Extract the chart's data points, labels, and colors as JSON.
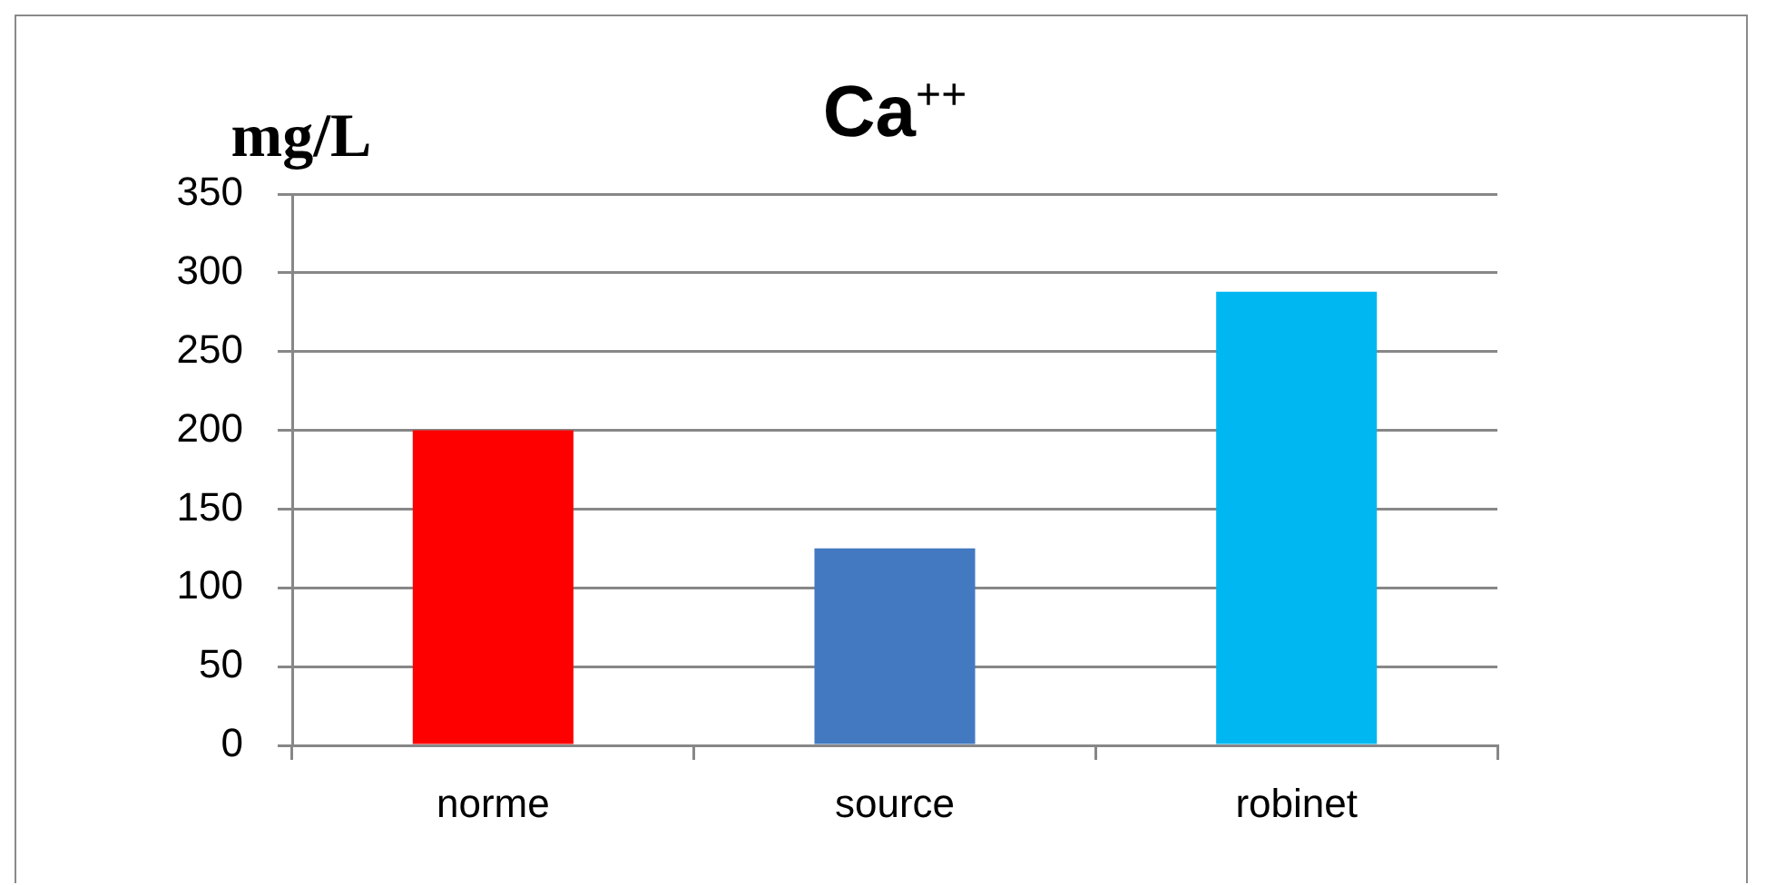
{
  "chart_data": {
    "type": "bar",
    "title": "Ca$^{++}$",
    "ylabel": "mg/L",
    "categories": [
      "norme",
      "source",
      "robinet"
    ],
    "values": [
      200,
      125,
      288
    ],
    "colors": [
      "#ff0000",
      "#4279c0",
      "#00b7f1"
    ],
    "ylim": [
      0,
      350
    ],
    "yticks": [
      0,
      50,
      100,
      150,
      200,
      250,
      300,
      350
    ],
    "grid": "y"
  }
}
